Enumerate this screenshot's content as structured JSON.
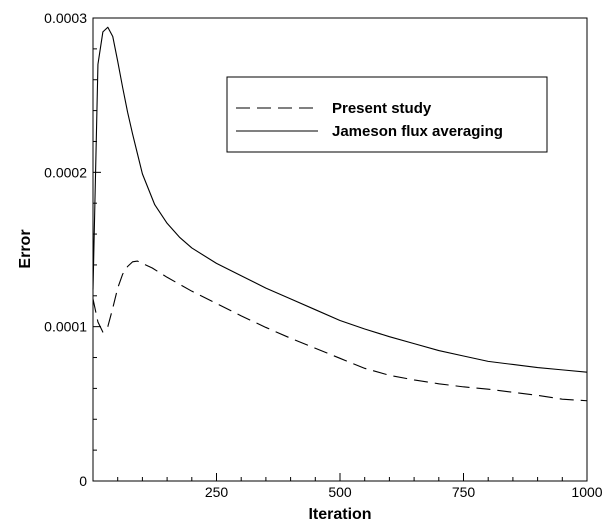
{
  "chart_data": {
    "type": "line",
    "title": "",
    "xlabel": "Iteration",
    "ylabel": "Error",
    "xlim": [
      0,
      1000
    ],
    "ylim": [
      0,
      0.0003
    ],
    "x_ticks": [
      {
        "value": 250,
        "label": "250"
      },
      {
        "value": 500,
        "label": "500"
      },
      {
        "value": 750,
        "label": "750"
      },
      {
        "value": 1000,
        "label": "1000"
      }
    ],
    "y_ticks": [
      {
        "value": 0,
        "label": "0"
      },
      {
        "value": 0.0001,
        "label": "0.0001"
      },
      {
        "value": 0.0002,
        "label": "0.0002"
      },
      {
        "value": 0.0003,
        "label": "0.0003"
      }
    ],
    "grid": false,
    "legend_position": "top-right",
    "series": [
      {
        "name": "Present study",
        "line_style": "dashed",
        "x": [
          0,
          10,
          20,
          30,
          40,
          50,
          60,
          70,
          80,
          90,
          100,
          120,
          150,
          200,
          250,
          300,
          350,
          400,
          450,
          500,
          550,
          600,
          650,
          700,
          750,
          800,
          850,
          900,
          950,
          1000
        ],
        "y": [
          0.000118,
          0.000103,
          9.65e-05,
          0.0001,
          0.000112,
          0.000125,
          0.000134,
          0.000139,
          0.000142,
          0.0001425,
          0.000141,
          0.000138,
          0.000132,
          0.000123,
          0.000115,
          0.000107,
          9.95e-05,
          9.25e-05,
          8.6e-05,
          7.95e-05,
          7.3e-05,
          6.85e-05,
          6.55e-05,
          6.3e-05,
          6.1e-05,
          5.95e-05,
          5.75e-05,
          5.55e-05,
          5.3e-05,
          5.2e-05
        ]
      },
      {
        "name": "Jameson flux averaging",
        "line_style": "solid",
        "x": [
          0,
          10,
          20,
          30,
          40,
          50,
          60,
          70,
          80,
          90,
          100,
          125,
          150,
          175,
          200,
          250,
          300,
          350,
          400,
          450,
          500,
          550,
          600,
          650,
          700,
          750,
          800,
          850,
          900,
          950,
          1000
        ],
        "y": [
          0.000124,
          0.00027,
          0.000291,
          0.000294,
          0.000288,
          0.000272,
          0.000255,
          0.000239,
          0.000225,
          0.000212,
          0.000199,
          0.000179,
          0.000167,
          0.000158,
          0.000151,
          0.000141,
          0.000133,
          0.000125,
          0.000118,
          0.000111,
          0.000104,
          9.85e-05,
          9.35e-05,
          8.9e-05,
          8.45e-05,
          8.1e-05,
          7.75e-05,
          7.55e-05,
          7.35e-05,
          7.2e-05,
          7.05e-05
        ]
      }
    ]
  }
}
